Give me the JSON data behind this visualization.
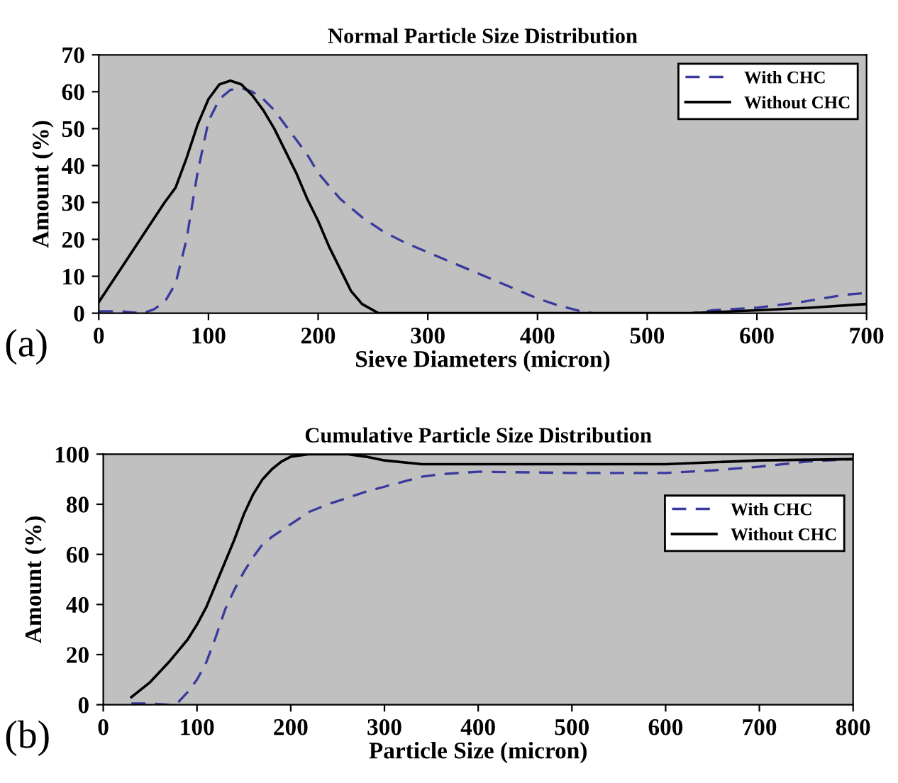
{
  "chart_data": [
    {
      "type": "line",
      "title": "Normal Particle Size Distribution",
      "xlabel": "Sieve Diameters (micron)",
      "ylabel": "Amount (%)",
      "xlim": [
        0,
        700
      ],
      "xticks": [
        0,
        100,
        200,
        300,
        400,
        500,
        600,
        700
      ],
      "ylim": [
        0,
        70
      ],
      "yticks": [
        0,
        10,
        20,
        30,
        40,
        50,
        60,
        70
      ],
      "grid": false,
      "legend": "top right",
      "marker": "none",
      "annotations": [
        "(a)"
      ],
      "series": [
        {
          "name": "With CHC",
          "color": "#3a3a9e",
          "line_style": "dashed",
          "x": [
            0,
            20,
            40,
            50,
            60,
            70,
            80,
            90,
            100,
            110,
            120,
            130,
            140,
            150,
            160,
            170,
            180,
            190,
            200,
            220,
            240,
            260,
            280,
            300,
            320,
            340,
            360,
            380,
            400,
            420,
            440,
            450,
            540,
            560,
            600,
            640,
            680,
            700
          ],
          "values": [
            0.5,
            0.5,
            0,
            1,
            3,
            8,
            20,
            38,
            52,
            58,
            60.5,
            61,
            60,
            58,
            55,
            51,
            47,
            43,
            38,
            31,
            26,
            22,
            19,
            16.5,
            14,
            11.5,
            9,
            6.5,
            4,
            2,
            0.5,
            0,
            0,
            0.8,
            1.5,
            3,
            5,
            5.5
          ]
        },
        {
          "name": "Without CHC",
          "color": "#000000",
          "line_style": "solid",
          "x": [
            0,
            20,
            40,
            60,
            70,
            80,
            90,
            100,
            110,
            120,
            130,
            140,
            150,
            160,
            170,
            180,
            190,
            200,
            210,
            220,
            230,
            240,
            255,
            540,
            600,
            650,
            700
          ],
          "values": [
            3,
            12,
            21,
            30,
            34,
            42,
            51,
            58,
            62,
            63,
            62,
            59,
            55,
            50,
            44,
            38,
            31,
            25,
            18,
            12,
            6,
            2.5,
            0,
            0,
            0.8,
            1.5,
            2.5
          ]
        }
      ]
    },
    {
      "type": "line",
      "title": "Cumulative Particle Size Distribution",
      "xlabel": "Particle Size (micron)",
      "ylabel": "Amount (%)",
      "xlim": [
        0,
        800
      ],
      "xticks": [
        0,
        100,
        200,
        300,
        400,
        500,
        600,
        700,
        800
      ],
      "ylim": [
        0,
        100
      ],
      "yticks": [
        0,
        20,
        40,
        60,
        80,
        100
      ],
      "grid": false,
      "legend": "right",
      "marker": "none",
      "annotations": [
        "(b)"
      ],
      "series": [
        {
          "name": "With CHC",
          "color": "#3a3a9e",
          "line_style": "dashed",
          "x": [
            30,
            50,
            70,
            80,
            90,
            100,
            110,
            120,
            130,
            140,
            150,
            160,
            170,
            180,
            200,
            220,
            240,
            260,
            280,
            300,
            320,
            340,
            360,
            380,
            400,
            500,
            600,
            650,
            700,
            750,
            800
          ],
          "values": [
            0.5,
            0.5,
            0,
            1,
            5,
            10,
            17,
            27,
            38,
            46,
            53,
            59,
            64,
            67,
            72,
            77,
            80,
            82.5,
            85,
            87,
            89,
            91,
            92,
            92.5,
            93,
            92.5,
            92.5,
            93.5,
            95,
            97,
            98
          ]
        },
        {
          "name": "Without CHC",
          "color": "#000000",
          "line_style": "solid",
          "x": [
            30,
            50,
            70,
            90,
            100,
            110,
            120,
            130,
            140,
            150,
            160,
            170,
            180,
            190,
            200,
            220,
            260,
            280,
            300,
            340,
            400,
            600,
            700,
            800
          ],
          "values": [
            3,
            9,
            17,
            26,
            32,
            39,
            48,
            57,
            66,
            76,
            84,
            90,
            94,
            97,
            99,
            100,
            100,
            99,
            97.5,
            96,
            96,
            96,
            97.5,
            98
          ]
        }
      ]
    }
  ]
}
